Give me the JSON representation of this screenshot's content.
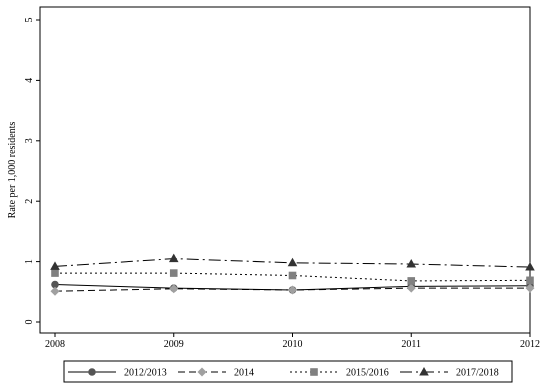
{
  "chart_data": {
    "type": "line",
    "title": "",
    "xlabel": "",
    "ylabel": "Rate per 1,000 residents",
    "x": [
      2008,
      2009,
      2010,
      2011,
      2012
    ],
    "xlim": [
      2008,
      2012
    ],
    "ylim": [
      0,
      5
    ],
    "yticks": [
      0,
      1,
      2,
      3,
      4,
      5
    ],
    "grid": false,
    "legend_position": "bottom",
    "series": [
      {
        "name": "2012/2013",
        "values": [
          0.62,
          0.56,
          0.53,
          0.59,
          0.6
        ],
        "color": "#555555",
        "marker": "circle",
        "dash": "solid"
      },
      {
        "name": "2014",
        "values": [
          0.51,
          0.55,
          0.53,
          0.56,
          0.56
        ],
        "color": "#a0a0a0",
        "marker": "diamond",
        "dash": "dash"
      },
      {
        "name": "2015/2016",
        "values": [
          0.81,
          0.81,
          0.77,
          0.68,
          0.69
        ],
        "color": "#808080",
        "marker": "square",
        "dash": "dot"
      },
      {
        "name": "2017/2018",
        "values": [
          0.92,
          1.05,
          0.98,
          0.96,
          0.91
        ],
        "color": "#333333",
        "marker": "triangle",
        "dash": "dashdot"
      }
    ]
  }
}
